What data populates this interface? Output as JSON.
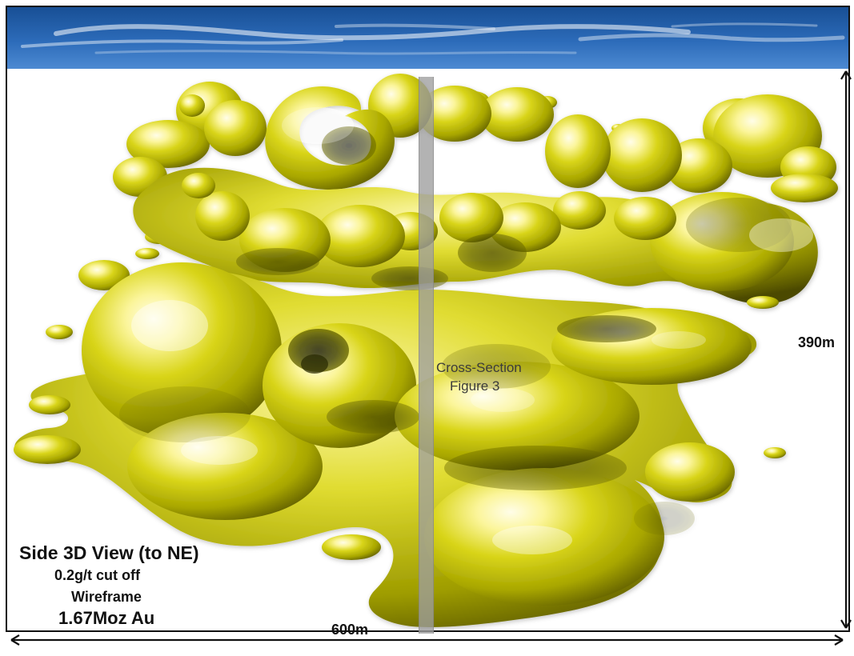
{
  "figure": {
    "title": "Side 3D View (to NE)",
    "cutoff": "0.2g/t cut off",
    "mode": "Wireframe",
    "resource": "1.67Moz Au",
    "cross_section_line1": "Cross-Section",
    "cross_section_line2": "Figure 3",
    "width_label": "600m",
    "height_label": "390m"
  },
  "colors": {
    "sky_top": "#184f95",
    "sky_bottom": "#3b7ccc",
    "orebody_light": "#fffbc2",
    "orebody_mid": "#c8c400",
    "orebody_dark": "#2f3200"
  }
}
